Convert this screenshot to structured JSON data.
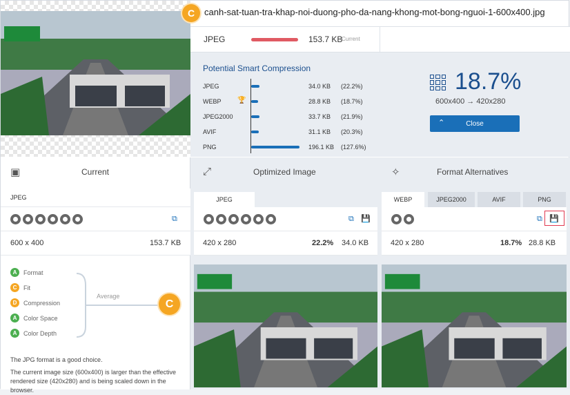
{
  "filename": "canh-sat-tuan-tra-khap-noi-duong-pho-da-nang-khong-mot-bong-nguoi-1-600x400.jpg",
  "badge_letter": "C",
  "current": {
    "format": "JPEG",
    "size": "153.7 KB",
    "tag": "Current"
  },
  "smart": {
    "title": "Potential Smart Compression",
    "rows": [
      {
        "name": "JPEG",
        "size": "34.0 KB",
        "pct": "(22.2%)",
        "ratio": 0.222
      },
      {
        "name": "WEBP",
        "size": "28.8 KB",
        "pct": "(18.7%)",
        "ratio": 0.187,
        "best": true
      },
      {
        "name": "JPEG2000",
        "size": "33.7 KB",
        "pct": "(21.9%)",
        "ratio": 0.219
      },
      {
        "name": "AVIF",
        "size": "31.1 KB",
        "pct": "(20.3%)",
        "ratio": 0.203
      },
      {
        "name": "PNG",
        "size": "196.1 KB",
        "pct": "(127.6%)",
        "ratio": 1.276
      }
    ],
    "best_pct": "18.7%",
    "dims": "600x400 → 420x280",
    "close_label": "Close"
  },
  "left": {
    "heading": "Current",
    "format": "JPEG",
    "dims": "600 x 400",
    "size": "153.7 KB",
    "checks": [
      {
        "letter": "A",
        "label": "Format",
        "color": "#4caf50"
      },
      {
        "letter": "C",
        "label": "Fit",
        "color": "#f5a623"
      },
      {
        "letter": "D",
        "label": "Compression",
        "color": "#f5a623"
      },
      {
        "letter": "A",
        "label": "Color Space",
        "color": "#4caf50"
      },
      {
        "letter": "A",
        "label": "Color Depth",
        "color": "#4caf50"
      }
    ],
    "average_label": "Average",
    "grade": "C",
    "desc1": "The JPG format is a good choice.",
    "desc2": "The current image size (600x400) is larger than the effective rendered size (420x280) and is being scaled down in the browser."
  },
  "optimized": {
    "heading": "Optimized Image",
    "tab": "JPEG",
    "dims": "420 x 280",
    "pct": "22.2%",
    "size": "34.0 KB"
  },
  "alternatives": {
    "heading": "Format Alternatives",
    "tabs": [
      "WEBP",
      "JPEG2000",
      "AVIF",
      "PNG"
    ],
    "dims": "420 x 280",
    "pct": "18.7%",
    "size": "28.8 KB"
  }
}
